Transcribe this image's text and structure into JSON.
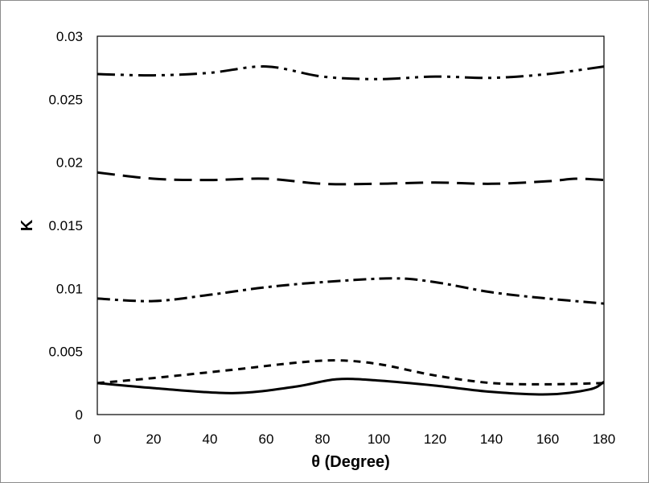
{
  "chart_data": {
    "type": "line",
    "title": "",
    "xlabel": "θ (Degree)",
    "ylabel": "K",
    "xlim": [
      0,
      180
    ],
    "ylim": [
      0,
      0.03
    ],
    "x_ticks": [
      "0",
      "20",
      "40",
      "60",
      "80",
      "100",
      "120",
      "140",
      "160",
      "180"
    ],
    "y_ticks": [
      "0",
      "0.005",
      "0.01",
      "0.015",
      "0.02",
      "0.025",
      "0.03"
    ],
    "grid": false,
    "legend": "none",
    "series": [
      {
        "style": "solid",
        "color": "#000000",
        "x": [
          0,
          20,
          48,
          70,
          85,
          100,
          120,
          140,
          160,
          175,
          180
        ],
        "y": [
          0.0025,
          0.0021,
          0.0017,
          0.0022,
          0.0028,
          0.0027,
          0.0023,
          0.0018,
          0.0016,
          0.002,
          0.0026
        ]
      },
      {
        "style": "dashed",
        "color": "#000000",
        "x": [
          0,
          20,
          50,
          70,
          85,
          100,
          120,
          140,
          160,
          180
        ],
        "y": [
          0.0025,
          0.0029,
          0.0036,
          0.0041,
          0.0043,
          0.004,
          0.0031,
          0.0025,
          0.0024,
          0.0025
        ]
      },
      {
        "style": "dash-dot",
        "color": "#000000",
        "x": [
          0,
          20,
          40,
          60,
          80,
          105,
          120,
          140,
          160,
          180
        ],
        "y": [
          0.0092,
          0.009,
          0.0095,
          0.0101,
          0.0105,
          0.0108,
          0.0105,
          0.0097,
          0.0092,
          0.0088
        ]
      },
      {
        "style": "long-dash",
        "color": "#000000",
        "x": [
          0,
          20,
          40,
          60,
          80,
          100,
          120,
          140,
          160,
          170,
          180
        ],
        "y": [
          0.0192,
          0.0187,
          0.0186,
          0.0187,
          0.0183,
          0.0183,
          0.0184,
          0.0183,
          0.0185,
          0.0187,
          0.0186
        ]
      },
      {
        "style": "dash-dot-dot",
        "color": "#000000",
        "x": [
          0,
          20,
          40,
          60,
          80,
          100,
          120,
          140,
          160,
          180
        ],
        "y": [
          0.027,
          0.0269,
          0.0271,
          0.0276,
          0.0268,
          0.0266,
          0.0268,
          0.0267,
          0.027,
          0.0276
        ]
      }
    ]
  }
}
